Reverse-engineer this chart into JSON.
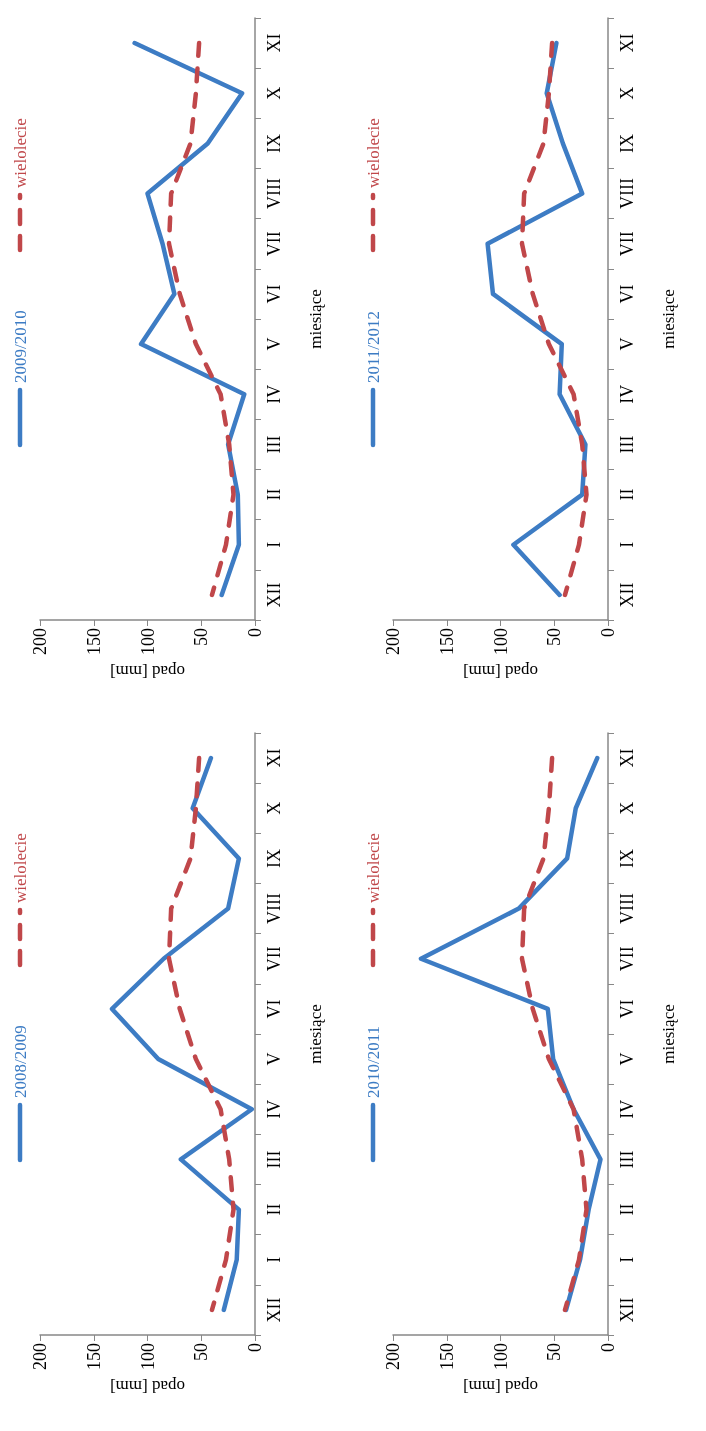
{
  "chart_data": [
    {
      "type": "line",
      "orientation": "horizontal",
      "xlabel": "opad [mm]",
      "ylabel": "miesiące",
      "categories": [
        "XI",
        "X",
        "IX",
        "VIII",
        "VII",
        "VI",
        "V",
        "IV",
        "III",
        "II",
        "I",
        "XII"
      ],
      "xlim": [
        200,
        0
      ],
      "xticks": [
        200,
        150,
        100,
        50,
        0
      ],
      "grid": false,
      "legend": "left",
      "marker": "none",
      "series": [
        {
          "name": "2008/2009",
          "color": "#3d7cc4",
          "line_style": "solid",
          "values": [
            41,
            58,
            15,
            25,
            85,
            133,
            90,
            3,
            69,
            15,
            17,
            29
          ]
        },
        {
          "name": "wielolecie",
          "color": "#c0474a",
          "line_style": "dashed",
          "values": [
            52,
            55,
            60,
            78,
            80,
            70,
            55,
            32,
            24,
            20,
            27,
            40
          ]
        }
      ]
    },
    {
      "type": "line",
      "orientation": "horizontal",
      "xlabel": "opad [mm]",
      "ylabel": "miesiące",
      "categories": [
        "XI",
        "X",
        "IX",
        "VIII",
        "VII",
        "VI",
        "V",
        "IV",
        "III",
        "II",
        "I",
        "XII"
      ],
      "xlim": [
        200,
        0
      ],
      "xticks": [
        200,
        150,
        100,
        50,
        0
      ],
      "grid": false,
      "legend": "left",
      "marker": "none",
      "series": [
        {
          "name": "2009/2010",
          "color": "#3d7cc4",
          "line_style": "solid",
          "values": [
            112,
            12,
            44,
            100,
            86,
            75,
            106,
            10,
            25,
            16,
            15,
            31
          ]
        },
        {
          "name": "wielolecie",
          "color": "#c0474a",
          "line_style": "dashed",
          "values": [
            52,
            55,
            60,
            78,
            80,
            70,
            55,
            32,
            24,
            20,
            27,
            40
          ]
        }
      ]
    },
    {
      "type": "line",
      "orientation": "horizontal",
      "xlabel": "opad [mm]",
      "ylabel": "miesiące",
      "categories": [
        "XI",
        "X",
        "IX",
        "VIII",
        "VII",
        "VI",
        "V",
        "IV",
        "III",
        "II",
        "I",
        "XII"
      ],
      "xlim": [
        200,
        0
      ],
      "xticks": [
        200,
        150,
        100,
        50,
        0
      ],
      "grid": false,
      "legend": "left",
      "marker": "none",
      "series": [
        {
          "name": "2010/2011",
          "color": "#3d7cc4",
          "line_style": "solid",
          "values": [
            10,
            30,
            38,
            83,
            174,
            56,
            51,
            32,
            7,
            18,
            26,
            39
          ]
        },
        {
          "name": "wielolecie",
          "color": "#c0474a",
          "line_style": "dashed",
          "values": [
            52,
            55,
            60,
            78,
            80,
            70,
            55,
            32,
            24,
            20,
            27,
            40
          ]
        }
      ]
    },
    {
      "type": "line",
      "orientation": "horizontal",
      "xlabel": "opad [mm]",
      "ylabel": "miesiące",
      "categories": [
        "XI",
        "X",
        "IX",
        "VIII",
        "VII",
        "VI",
        "V",
        "IV",
        "III",
        "II",
        "I",
        "XII"
      ],
      "xlim": [
        200,
        0
      ],
      "xticks": [
        200,
        150,
        100,
        50,
        0
      ],
      "grid": false,
      "legend": "left",
      "marker": "none",
      "series": [
        {
          "name": "2011/2012",
          "color": "#3d7cc4",
          "line_style": "solid",
          "values": [
            48,
            57,
            42,
            24,
            112,
            107,
            43,
            45,
            21,
            24,
            88,
            45
          ]
        },
        {
          "name": "wielolecie",
          "color": "#c0474a",
          "line_style": "dashed",
          "values": [
            52,
            55,
            60,
            78,
            80,
            70,
            55,
            32,
            24,
            20,
            27,
            40
          ]
        }
      ]
    }
  ]
}
